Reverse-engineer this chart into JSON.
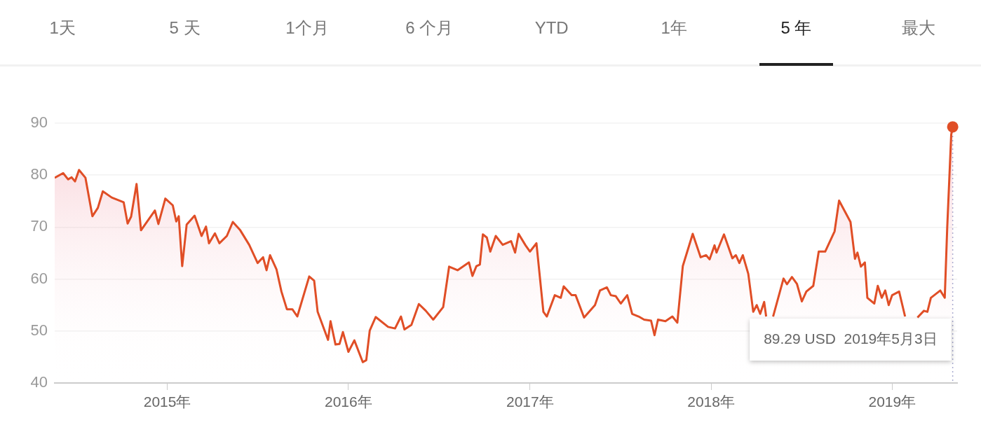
{
  "chart_data": {
    "type": "area",
    "color": "#e04e26",
    "x": [
      "2014-05-19",
      "2014-06-05",
      "2014-06-15",
      "2014-06-22",
      "2014-06-29",
      "2014-07-07",
      "2014-07-20",
      "2014-08-03",
      "2014-08-14",
      "2014-08-24",
      "2014-09-11",
      "2014-10-05",
      "2014-10-13",
      "2014-10-20",
      "2014-10-31",
      "2014-11-09",
      "2014-12-07",
      "2014-12-14",
      "2014-12-28",
      "2015-01-12",
      "2015-01-19",
      "2015-01-24",
      "2015-01-31",
      "2015-02-09",
      "2015-02-25",
      "2015-03-11",
      "2015-03-20",
      "2015-03-26",
      "2015-04-07",
      "2015-04-16",
      "2015-05-01",
      "2015-05-13",
      "2015-05-28",
      "2015-06-15",
      "2015-07-02",
      "2015-07-13",
      "2015-07-20",
      "2015-07-27",
      "2015-08-09",
      "2015-08-19",
      "2015-08-30",
      "2015-09-10",
      "2015-09-20",
      "2015-10-14",
      "2015-10-24",
      "2015-10-31",
      "2015-11-21",
      "2015-11-26",
      "2015-12-06",
      "2015-12-14",
      "2015-12-21",
      "2016-01-01",
      "2016-01-13",
      "2016-01-30",
      "2016-02-06",
      "2016-02-13",
      "2016-02-25",
      "2016-03-21",
      "2016-04-04",
      "2016-04-16",
      "2016-04-23",
      "2016-05-07",
      "2016-05-22",
      "2016-06-05",
      "2016-06-20",
      "2016-07-10",
      "2016-07-22",
      "2016-08-08",
      "2016-08-31",
      "2016-09-07",
      "2016-09-15",
      "2016-09-22",
      "2016-09-28",
      "2016-10-06",
      "2016-10-13",
      "2016-10-24",
      "2016-11-07",
      "2016-11-24",
      "2016-12-02",
      "2016-12-09",
      "2016-12-23",
      "2017-01-01",
      "2017-01-14",
      "2017-01-28",
      "2017-02-04",
      "2017-02-20",
      "2017-03-04",
      "2017-03-10",
      "2017-03-26",
      "2017-04-03",
      "2017-04-20",
      "2017-05-12",
      "2017-05-22",
      "2017-06-05",
      "2017-06-13",
      "2017-06-23",
      "2017-07-03",
      "2017-07-16",
      "2017-07-26",
      "2017-08-08",
      "2017-08-19",
      "2017-09-02",
      "2017-09-09",
      "2017-09-16",
      "2017-10-01",
      "2017-10-15",
      "2017-10-25",
      "2017-11-05",
      "2017-11-25",
      "2017-12-11",
      "2017-12-22",
      "2017-12-29",
      "2018-01-08",
      "2018-01-12",
      "2018-01-27",
      "2018-02-13",
      "2018-02-20",
      "2018-02-27",
      "2018-03-06",
      "2018-03-17",
      "2018-03-27",
      "2018-04-03",
      "2018-04-10",
      "2018-04-18",
      "2018-04-22",
      "2018-04-29",
      "2018-05-06",
      "2018-05-27",
      "2018-06-03",
      "2018-06-13",
      "2018-06-23",
      "2018-07-03",
      "2018-07-12",
      "2018-07-26",
      "2018-08-06",
      "2018-08-19",
      "2018-09-07",
      "2018-09-16",
      "2018-10-09",
      "2018-10-18",
      "2018-10-23",
      "2018-10-30",
      "2018-11-07",
      "2018-11-12",
      "2018-11-26",
      "2018-12-03",
      "2018-12-11",
      "2018-12-18",
      "2018-12-25",
      "2019-01-01",
      "2019-01-15",
      "2019-01-27",
      "2019-02-03",
      "2019-02-21",
      "2019-03-06",
      "2019-03-13",
      "2019-03-20",
      "2019-04-08",
      "2019-04-17",
      "2019-04-22",
      "2019-04-30",
      "2019-05-03"
    ],
    "values": [
      79.5,
      80.4,
      79.2,
      79.6,
      78.8,
      81,
      79.5,
      72.1,
      73.7,
      76.9,
      75.7,
      74.8,
      70.7,
      72,
      78.3,
      69.4,
      73.2,
      70.6,
      75.5,
      74.2,
      71.1,
      72.1,
      62.5,
      70.5,
      72.2,
      68.3,
      70.1,
      66.9,
      68.8,
      66.9,
      68.3,
      71,
      69.4,
      66.6,
      63.1,
      64.2,
      61.7,
      64.6,
      61.9,
      57.6,
      54.2,
      54.2,
      52.8,
      60.5,
      59.7,
      53.7,
      48.3,
      51.9,
      47.4,
      47.5,
      49.8,
      46,
      48.2,
      44,
      44.4,
      50.1,
      52.7,
      50.8,
      50.5,
      52.8,
      50.3,
      51.2,
      55.2,
      53.9,
      52.2,
      54.6,
      62.4,
      61.7,
      63.2,
      60.6,
      62.5,
      62.8,
      68.6,
      68,
      65.3,
      68.3,
      66.6,
      67.3,
      65.1,
      68.7,
      66.5,
      65.3,
      66.9,
      53.7,
      52.8,
      56.9,
      56.4,
      58.6,
      56.9,
      56.9,
      52.6,
      55,
      57.8,
      58.4,
      56.9,
      56.7,
      55.3,
      56.9,
      53.3,
      52.8,
      52.2,
      52,
      49.2,
      52.2,
      51.9,
      52.8,
      51.6,
      62.5,
      68.7,
      64.2,
      64.6,
      63.8,
      66.5,
      65.1,
      68.6,
      64,
      64.6,
      63.1,
      64.6,
      61,
      53.7,
      55,
      53.3,
      55.6,
      52.8,
      null,
      52.8,
      60.1,
      59,
      60.4,
      59.1,
      55.7,
      57.6,
      58.7,
      65.3,
      65.3,
      69.2,
      75.1,
      71,
      63.9,
      65.1,
      62.4,
      63.2,
      56.4,
      55.3,
      58.7,
      56.4,
      57.8,
      55,
      56.9,
      57.6,
      52.8,
      null,
      52.6,
      53.9,
      53.7,
      56.4,
      57.8,
      56.4,
      70,
      87.8,
      89.29
    ],
    "xlim": [
      "2014-05-19",
      "2019-05-12"
    ],
    "xticks": [
      {
        "value": "2015-01-01",
        "label": "2015年"
      },
      {
        "value": "2016-01-01",
        "label": "2016年"
      },
      {
        "value": "2017-01-01",
        "label": "2017年"
      },
      {
        "value": "2018-01-01",
        "label": "2018年"
      },
      {
        "value": "2019-01-01",
        "label": "2019年"
      }
    ],
    "ylim": [
      40,
      90
    ],
    "yticks": [
      40,
      50,
      60,
      70,
      80,
      90
    ],
    "grid": "y",
    "legend": false,
    "marker": "none",
    "ref_lines": [
      {
        "axis": "x",
        "value": "2019-05-03",
        "line_style": "dotted",
        "color": "#a9acd0"
      }
    ],
    "annotations": [
      "1天",
      "5 天",
      "1个月",
      "6 个月",
      "YTD",
      "1年",
      "5 年",
      "最大",
      "89.29 USD  2019年5月3日"
    ]
  }
}
